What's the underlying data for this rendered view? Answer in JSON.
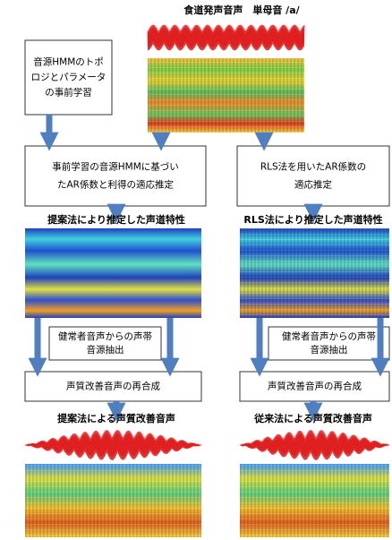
{
  "title": "食道発声音声　単母音 /a/",
  "boxes": [
    {
      "lines": [
        "音源HMMのトポ",
        "ロジとパラメータ",
        "の事前学習"
      ]
    },
    {
      "lines": [
        "事前学習の音源HMMに基づい",
        "たAR係数と利得の適応推定"
      ]
    },
    {
      "lines": [
        "RLS法を用いたAR係数の",
        "適応推定"
      ]
    },
    {
      "lines": [
        "健常者音声からの声帯",
        "音源抽出"
      ]
    },
    {
      "lines": [
        "健常者音声からの声帯",
        "音源抽出"
      ]
    },
    {
      "lines": [
        "声質改善音声の再合成"
      ]
    },
    {
      "lines": [
        "声質改善音声の再合成"
      ]
    }
  ],
  "labels": [
    "提案法により推定した声道特性",
    "RLS法により推定した声道特性",
    "提案法による声質改善音声",
    "従来法による声質改善音声"
  ]
}
